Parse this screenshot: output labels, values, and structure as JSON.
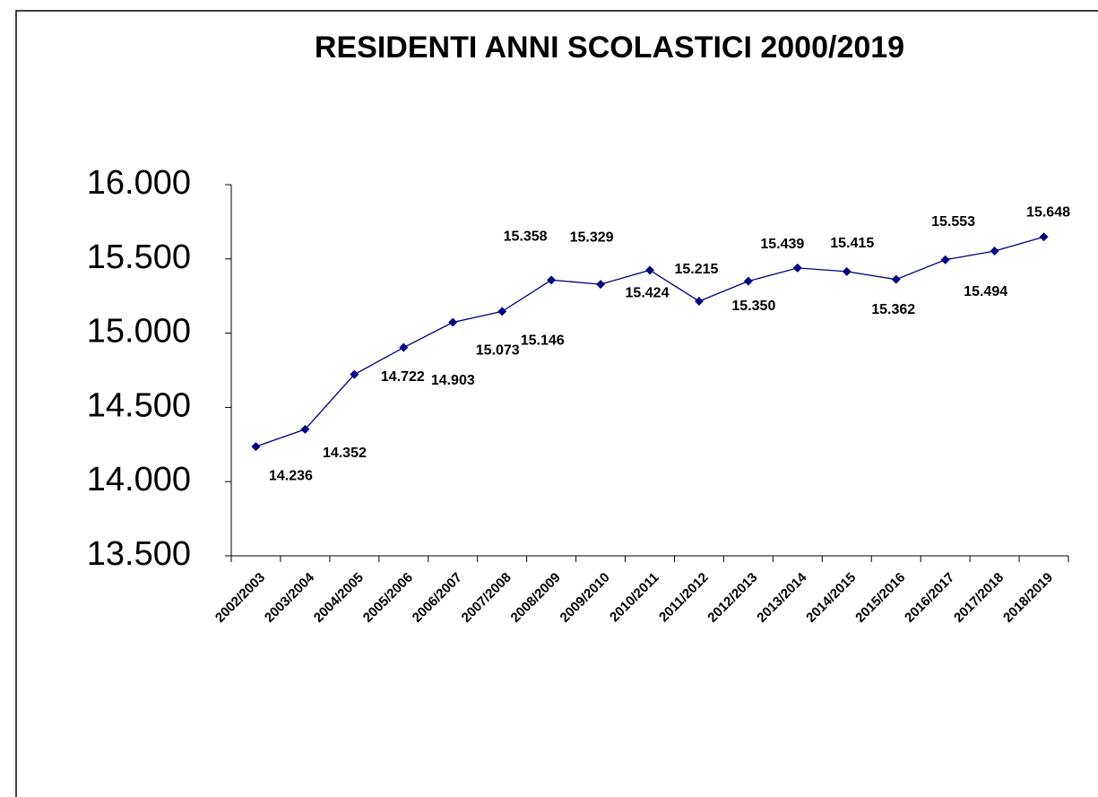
{
  "chart_data": {
    "type": "line",
    "title": "RESIDENTI ANNI SCOLASTICI 2000/2019",
    "categories": [
      "2002/2003",
      "2003/2004",
      "2004/2005",
      "2005/2006",
      "2006/2007",
      "2007/2008",
      "2008/2009",
      "2009/2010",
      "2010/2011",
      "2011/2012",
      "2012/2013",
      "2013/2014",
      "2014/2015",
      "2015/2016",
      "2016/2017",
      "2017/2018",
      "2018/2019"
    ],
    "values": [
      14236,
      14352,
      14722,
      14903,
      15073,
      15146,
      15358,
      15329,
      15424,
      15215,
      15350,
      15439,
      15415,
      15362,
      15494,
      15553,
      15648
    ],
    "value_labels": [
      "14.236",
      "14.352",
      "14.722",
      "14.903",
      "15.073",
      "15.146",
      "15.358",
      "15.329",
      "15.424",
      "15.215",
      "15.350",
      "15.439",
      "15.415",
      "15.362",
      "15.494",
      "15.553",
      "15.648"
    ],
    "color": "#000080",
    "ylim": [
      13500,
      16000
    ],
    "yticks": [
      {
        "value": 13500,
        "label": "13.500"
      },
      {
        "value": 14000,
        "label": "14.000"
      },
      {
        "value": 14500,
        "label": "14.500"
      },
      {
        "value": 15000,
        "label": "15.000"
      },
      {
        "value": 15500,
        "label": "15.500"
      },
      {
        "value": 16000,
        "label": "16.000"
      }
    ]
  }
}
